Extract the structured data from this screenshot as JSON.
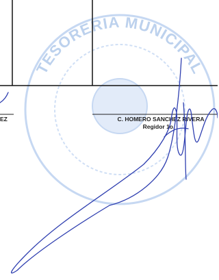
{
  "left_signature": {
    "name_fragment": "EZ"
  },
  "right_signature": {
    "name": "C. HOMERO SANCHEZ RIVERA",
    "role": "Regidor 1o."
  },
  "stamp": {
    "text": "TESORERIA MUNICIPAL"
  }
}
